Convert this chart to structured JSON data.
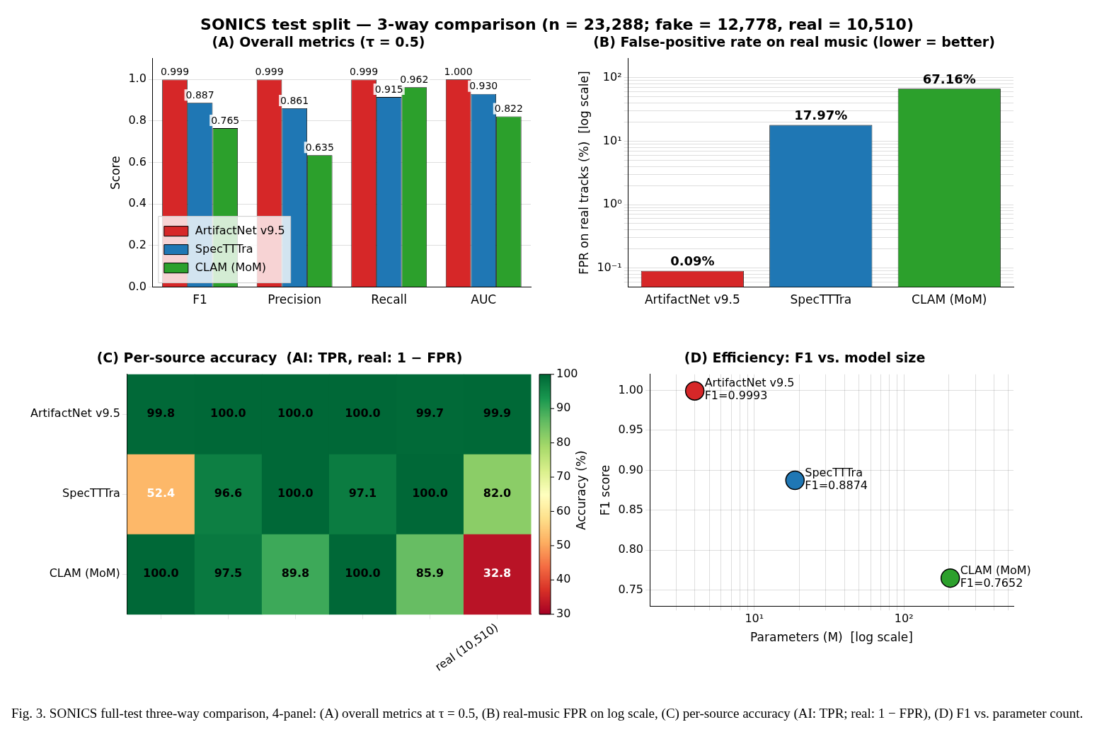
{
  "chart_data": [
    {
      "type": "other",
      "title": "SONICS test split — 3-way comparison  (n = 23,288;  fake = 12,778,  real = 10,510)",
      "annotations": [
        "Fig. 3.  SONICS full-test three-way comparison, 4-panel: (A) overall metrics at τ = 0.5, (B) real-music FPR on log scale, (C) per-source accuracy (AI: TPR; real: 1 − FPR), (D) F1 vs. parameter count."
      ]
    },
    {
      "type": "bar",
      "title": "(A) Overall metrics (τ = 0.5)",
      "ylabel": "Score",
      "categories": [
        "F1",
        "Precision",
        "Recall",
        "AUC"
      ],
      "series": [
        {
          "name": "ArtifactNet v9.5",
          "color": "#d62728",
          "values": [
            0.999,
            0.999,
            0.999,
            1.0
          ],
          "value_labels": [
            "0.999",
            "0.999",
            "0.999",
            "1.000"
          ]
        },
        {
          "name": "SpecTTTra",
          "color": "#1f77b4",
          "values": [
            0.887,
            0.861,
            0.915,
            0.93
          ],
          "value_labels": [
            "0.887",
            "0.861",
            "0.915",
            "0.930"
          ]
        },
        {
          "name": "CLAM (MoM)",
          "color": "#2ca02c",
          "values": [
            0.765,
            0.635,
            0.962,
            0.822
          ],
          "value_labels": [
            "0.765",
            "0.635",
            "0.962",
            "0.822"
          ]
        }
      ],
      "ylim": [
        0,
        1.1
      ],
      "yticks": [
        {
          "value": 0,
          "label": "0.0"
        },
        {
          "value": 0.2,
          "label": "0.2"
        },
        {
          "value": 0.4,
          "label": "0.4"
        },
        {
          "value": 0.6,
          "label": "0.6"
        },
        {
          "value": 0.8,
          "label": "0.8"
        },
        {
          "value": 1,
          "label": "1.0"
        }
      ],
      "grid": "y",
      "legend": "bottom left"
    },
    {
      "type": "bar",
      "title": "(B) False-positive rate on real music (lower = better)",
      "ylabel": "FPR on real tracks (%)  [log scale]",
      "categories": [
        "ArtifactNet v9.5",
        "SpecTTTra",
        "CLAM (MoM)"
      ],
      "values": [
        0.09,
        17.97,
        67.16
      ],
      "colors": [
        "#d62728",
        "#1f77b4",
        "#2ca02c"
      ],
      "value_labels": [
        "0.09%",
        "17.97%",
        "67.16%"
      ],
      "log": true,
      "ylim": [
        0.05,
        200
      ],
      "yticks": [
        {
          "value": 0.06,
          "label": null
        },
        {
          "value": 0.07,
          "label": null
        },
        {
          "value": 0.08,
          "label": null
        },
        {
          "value": 0.09,
          "label": null
        },
        {
          "value": 0.1,
          "label": "10⁻¹"
        },
        {
          "value": 0.2,
          "label": null
        },
        {
          "value": 0.3,
          "label": null
        },
        {
          "value": 0.4,
          "label": null
        },
        {
          "value": 0.5,
          "label": null
        },
        {
          "value": 0.6,
          "label": null
        },
        {
          "value": 0.7,
          "label": null
        },
        {
          "value": 0.8,
          "label": null
        },
        {
          "value": 0.9,
          "label": null
        },
        {
          "value": 1,
          "label": "10⁰"
        },
        {
          "value": 2,
          "label": null
        },
        {
          "value": 3,
          "label": null
        },
        {
          "value": 4,
          "label": null
        },
        {
          "value": 5,
          "label": null
        },
        {
          "value": 6,
          "label": null
        },
        {
          "value": 7,
          "label": null
        },
        {
          "value": 8,
          "label": null
        },
        {
          "value": 9,
          "label": null
        },
        {
          "value": 10,
          "label": "10¹"
        },
        {
          "value": 20,
          "label": null
        },
        {
          "value": 30,
          "label": null
        },
        {
          "value": 40,
          "label": null
        },
        {
          "value": 50,
          "label": null
        },
        {
          "value": 60,
          "label": null
        },
        {
          "value": 70,
          "label": null
        },
        {
          "value": 80,
          "label": null
        },
        {
          "value": 90,
          "label": null
        },
        {
          "value": 100,
          "label": "10²"
        }
      ],
      "grid": "y"
    },
    {
      "type": "heatmap",
      "title": "(C) Per-source accuracy  (AI: TPR, real: 1 − FPR)",
      "categories": [
        null,
        null,
        null,
        null,
        null,
        "real (10,510)"
      ],
      "y_categories": [
        "ArtifactNet v9.5",
        "SpecTTTra",
        "CLAM (MoM)"
      ],
      "cells": [
        [
          99.8,
          100.0,
          100.0,
          100.0,
          99.7,
          99.9
        ],
        [
          52.4,
          96.6,
          100.0,
          97.1,
          100.0,
          82.0
        ],
        [
          100.0,
          97.5,
          89.8,
          100.0,
          85.9,
          32.8
        ]
      ],
      "cell_labels": [
        [
          "99.8",
          "100.0",
          "100.0",
          "100.0",
          "99.7",
          "99.9"
        ],
        [
          "52.4",
          "96.6",
          "100.0",
          "97.1",
          "100.0",
          "82.0"
        ],
        [
          "100.0",
          "97.5",
          "89.8",
          "100.0",
          "85.9",
          "32.8"
        ]
      ],
      "clim": [
        30,
        100
      ],
      "cticks": [
        30,
        40,
        50,
        60,
        70,
        80,
        90,
        100
      ]
    },
    {
      "type": "scatter",
      "title": "(D) Efficiency: F1 vs. model size",
      "xlabel": "Parameters (M)  [log scale]",
      "ylabel": "F1 score",
      "log": "x",
      "marker": "circle",
      "grid": true,
      "series": [
        {
          "color": "#d62728",
          "x": [
            4
          ],
          "values": [
            0.9993
          ]
        },
        {
          "color": "#1f77b4",
          "x": [
            18.7
          ],
          "values": [
            0.8874
          ]
        },
        {
          "color": "#2ca02c",
          "x": [
            204
          ],
          "values": [
            0.7652
          ]
        }
      ],
      "xlim": [
        2,
        540
      ],
      "xticks": [
        {
          "value": 3,
          "label": null
        },
        {
          "value": 4,
          "label": null
        },
        {
          "value": 5,
          "label": null
        },
        {
          "value": 6,
          "label": null
        },
        {
          "value": 7,
          "label": null
        },
        {
          "value": 8,
          "label": null
        },
        {
          "value": 9,
          "label": null
        },
        {
          "value": 10,
          "label": "10¹"
        },
        {
          "value": 20,
          "label": null
        },
        {
          "value": 30,
          "label": null
        },
        {
          "value": 40,
          "label": null
        },
        {
          "value": 50,
          "label": null
        },
        {
          "value": 60,
          "label": null
        },
        {
          "value": 70,
          "label": null
        },
        {
          "value": 80,
          "label": null
        },
        {
          "value": 90,
          "label": null
        },
        {
          "value": 100,
          "label": "10²"
        },
        {
          "value": 200,
          "label": null
        },
        {
          "value": 300,
          "label": null
        },
        {
          "value": 400,
          "label": null
        },
        {
          "value": 500,
          "label": null
        }
      ],
      "ylim": [
        0.73,
        1.02
      ],
      "yticks": [
        {
          "value": 0.75,
          "label": "0.75"
        },
        {
          "value": 0.8,
          "label": "0.80"
        },
        {
          "value": 0.85,
          "label": "0.85"
        },
        {
          "value": 0.9,
          "label": "0.90"
        },
        {
          "value": 0.95,
          "label": "0.95"
        },
        {
          "value": 1,
          "label": "1.00"
        }
      ],
      "annotations": [
        "Accuracy (%)",
        {
          "text": "ArtifactNet v9.5\nF1=0.9993",
          "x": 4,
          "y": 0.9993
        },
        {
          "text": "SpecTTTra\nF1=0.8874",
          "x": 18.7,
          "y": 0.8874
        },
        {
          "text": "CLAM (MoM)\nF1=0.7652",
          "x": 204,
          "y": 0.7652
        }
      ]
    }
  ]
}
